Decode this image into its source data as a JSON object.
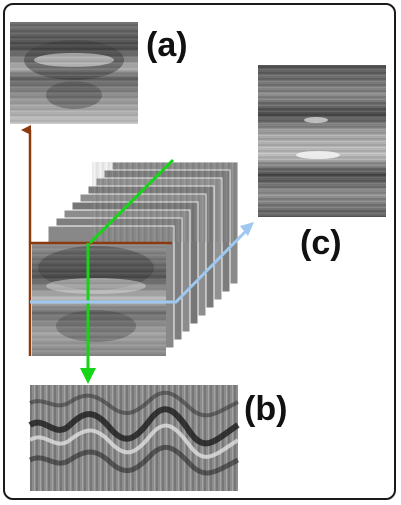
{
  "figure": {
    "panel_labels": {
      "a": "(a)",
      "b": "(b)",
      "c": "(c)"
    },
    "colors": {
      "axis_vertical": "#8b3a0f",
      "axis_green": "#16d416",
      "axis_blue": "#9ec8f0",
      "frame": "#1a1a1a"
    }
  }
}
